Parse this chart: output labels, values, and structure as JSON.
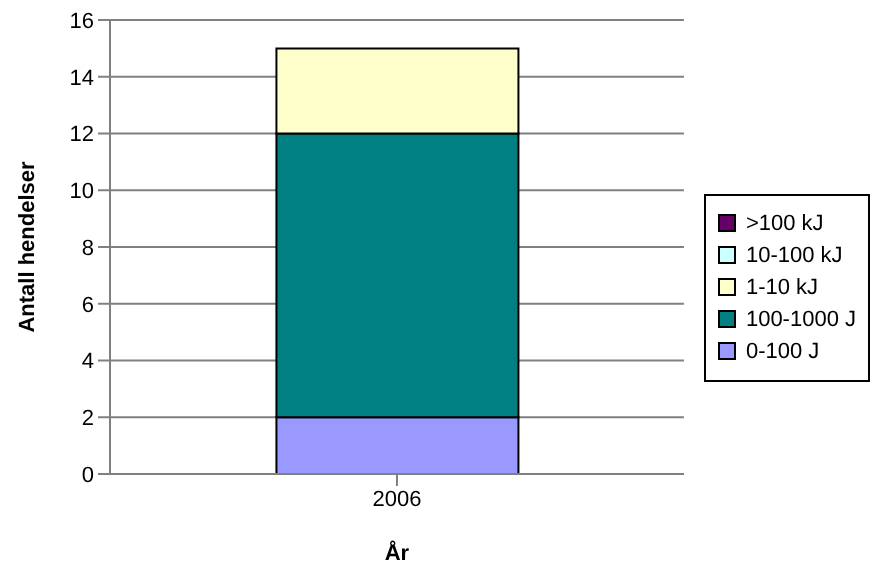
{
  "chart_data": {
    "type": "bar",
    "stacked": true,
    "xlabel": "År",
    "ylabel": "Antall hendelser",
    "categories": [
      "2006"
    ],
    "series": [
      {
        "name": "0-100 J",
        "color": "#9999ff",
        "values": [
          2
        ]
      },
      {
        "name": "100-1000 J",
        "color": "#008080",
        "values": [
          10
        ]
      },
      {
        "name": "1-10 kJ",
        "color": "#ffffcc",
        "values": [
          3
        ]
      },
      {
        "name": "10-100 kJ",
        "color": "#ccffff",
        "values": [
          0
        ]
      },
      {
        "name": ">100 kJ",
        "color": "#660066",
        "values": [
          0
        ]
      }
    ],
    "ylim": [
      0,
      16
    ],
    "yticks": [
      0,
      2,
      4,
      6,
      8,
      10,
      12,
      14,
      16
    ],
    "grid": "y",
    "legend": "right"
  }
}
